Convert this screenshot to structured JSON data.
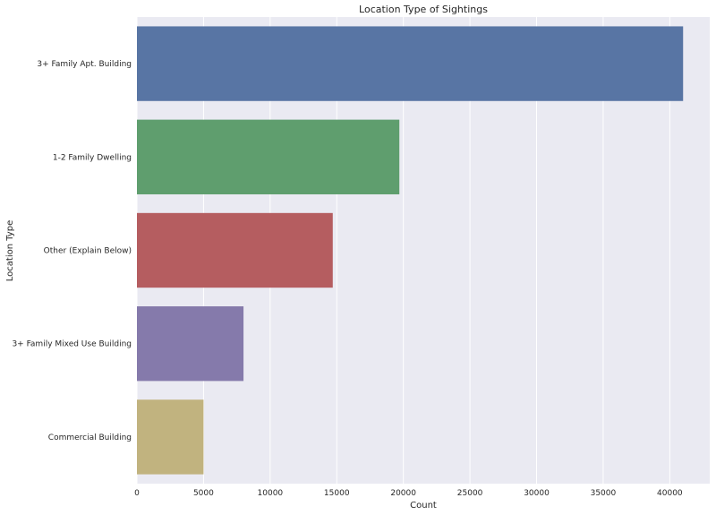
{
  "chart_data": {
    "type": "bar",
    "orientation": "horizontal",
    "title": "Location Type of Sightings",
    "xlabel": "Count",
    "ylabel": "Location Type",
    "categories": [
      "3+ Family Apt. Building",
      "1-2 Family Dwelling",
      "Other (Explain Below)",
      "3+ Family Mixed Use Building",
      "Commercial Building"
    ],
    "values": [
      41000,
      19700,
      14700,
      8000,
      5000
    ],
    "colors": [
      "#5875a4",
      "#5f9e6e",
      "#b55d60",
      "#857aab",
      "#c1b37f"
    ],
    "xlim": [
      0,
      43000
    ],
    "xticks": [
      0,
      5000,
      10000,
      15000,
      20000,
      25000,
      30000,
      35000,
      40000
    ],
    "grid": true,
    "background": "#eaeaf2"
  }
}
